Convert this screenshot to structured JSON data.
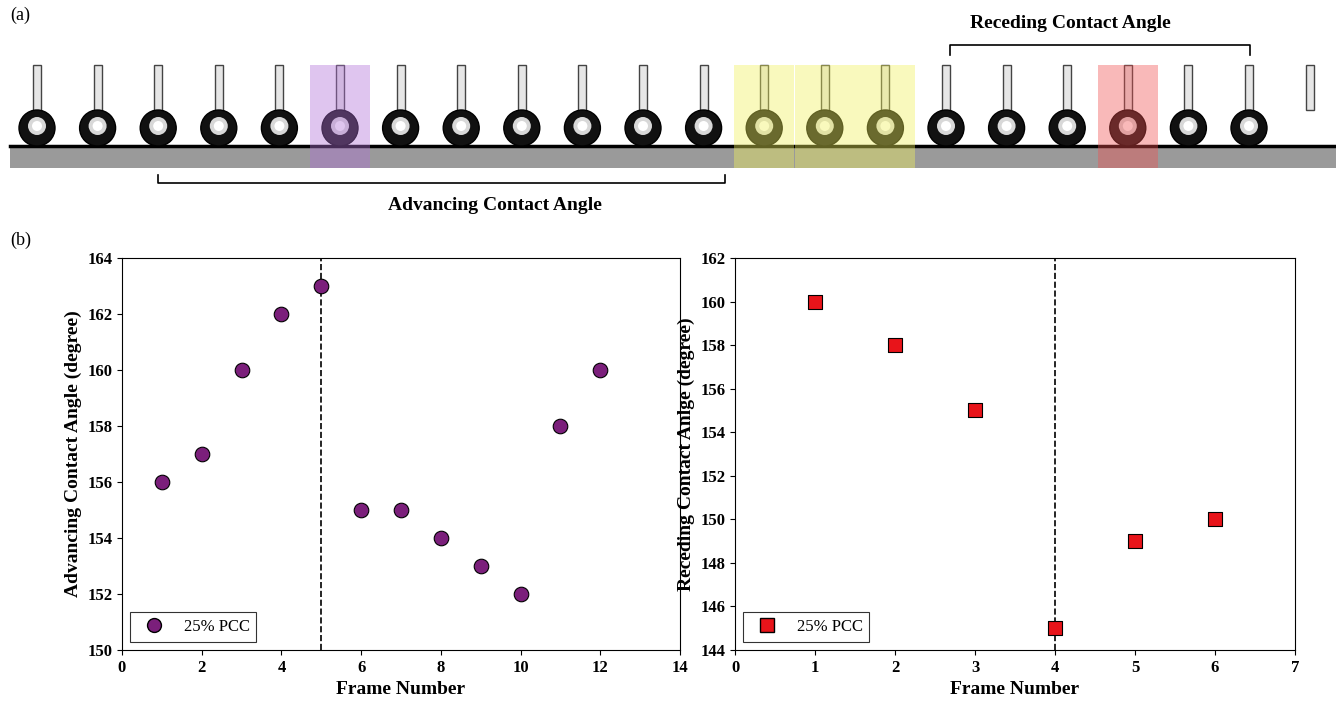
{
  "panel_labels": [
    "(a)",
    "(b)"
  ],
  "strip_annotations": {
    "advancing": "Advancing Contact Angle",
    "receding": "Receding Contact Angle"
  },
  "chart_data": [
    {
      "type": "scatter",
      "x_label": "Frame Number",
      "y_label": "Advancing Contact Angle (degree)",
      "x": [
        1,
        2,
        3,
        4,
        5,
        6,
        7,
        8,
        9,
        10,
        11,
        12
      ],
      "series": [
        {
          "name": "25% PCC",
          "color": "#7b1f7b",
          "marker": "circle",
          "values": [
            156,
            157,
            160,
            162,
            163,
            155,
            155,
            154,
            153,
            152,
            158,
            160
          ]
        }
      ],
      "vline": 5,
      "xlim": [
        0,
        14
      ],
      "xticks": [
        0,
        2,
        4,
        6,
        8,
        10,
        12,
        14
      ],
      "ylim": [
        150,
        164
      ],
      "yticks": [
        150,
        152,
        154,
        156,
        158,
        160,
        162,
        164
      ],
      "legend": "lower left",
      "grid": false
    },
    {
      "type": "scatter",
      "x_label": "Frame Number",
      "y_label": "Receding Contact Anlge (degree)",
      "x": [
        1,
        2,
        3,
        4,
        5,
        6
      ],
      "series": [
        {
          "name": "25% PCC",
          "color": "#e8141a",
          "marker": "square",
          "values": [
            160,
            158,
            155,
            145,
            149,
            150
          ]
        }
      ],
      "vline": 4,
      "xlim": [
        0,
        7
      ],
      "xticks": [
        0,
        1,
        2,
        3,
        4,
        5,
        6,
        7
      ],
      "ylim": [
        144,
        162
      ],
      "yticks": [
        144,
        146,
        148,
        150,
        152,
        154,
        156,
        158,
        160,
        162
      ],
      "legend": "lower left",
      "grid": false
    }
  ]
}
